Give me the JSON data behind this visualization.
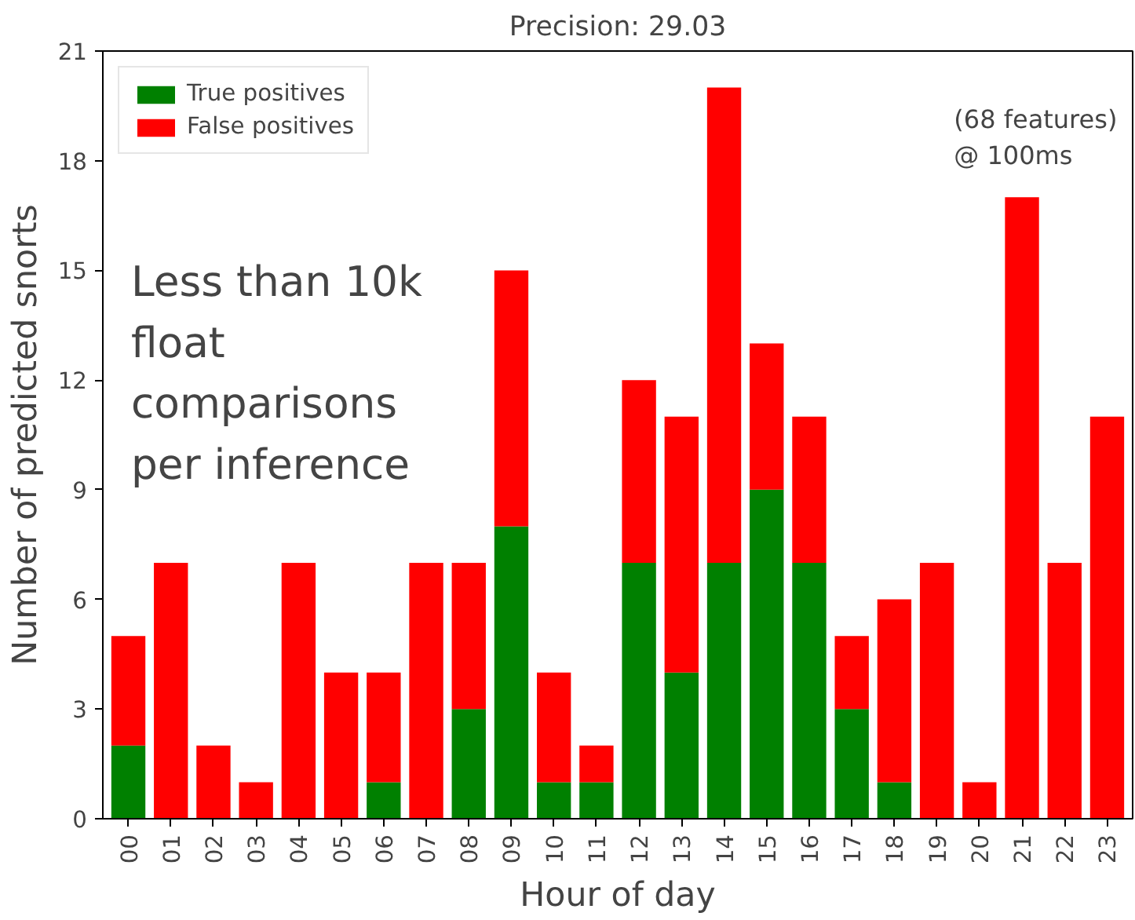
{
  "chart_data": {
    "type": "bar",
    "title": "Precision: 29.03",
    "xlabel": "Hour of day",
    "ylabel": "Number of predicted snorts",
    "categories": [
      "00",
      "01",
      "02",
      "03",
      "04",
      "05",
      "06",
      "07",
      "08",
      "09",
      "10",
      "11",
      "12",
      "13",
      "14",
      "15",
      "16",
      "17",
      "18",
      "19",
      "20",
      "21",
      "22",
      "23"
    ],
    "stacked": true,
    "series": [
      {
        "name": "True positives",
        "color": "#008000",
        "values": [
          2,
          0,
          0,
          0,
          0,
          0,
          1,
          0,
          3,
          8,
          1,
          1,
          7,
          4,
          7,
          9,
          7,
          3,
          1,
          0,
          0,
          0,
          0,
          0
        ]
      },
      {
        "name": "False positives",
        "color": "#ff0000",
        "values": [
          3,
          7,
          2,
          1,
          7,
          4,
          3,
          7,
          4,
          7,
          3,
          1,
          5,
          7,
          13,
          4,
          4,
          2,
          5,
          7,
          1,
          17,
          7,
          11
        ]
      }
    ],
    "ylim": [
      0,
      21
    ],
    "yticks": [
      0,
      3,
      6,
      9,
      12,
      15,
      18,
      21
    ],
    "grid": false,
    "legend": "top left",
    "annotations": [
      "Less than 10k\nfloat\ncomparisons\nper inference",
      "(68 features)\n@ 100ms"
    ]
  }
}
